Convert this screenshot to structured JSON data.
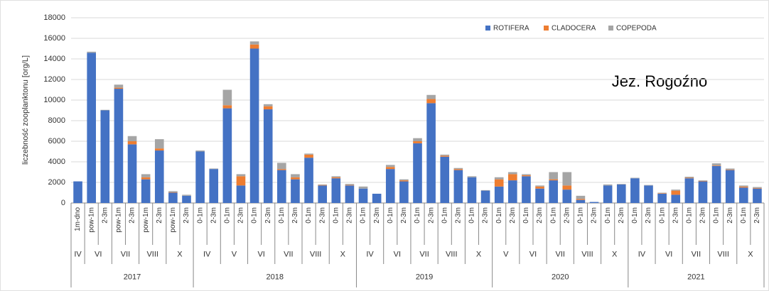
{
  "chart_data": {
    "type": "stacked-bar",
    "annotation": "Jez. Rogoźno",
    "y_label": "liczebność zooplanktonu [org/L]",
    "ylim": [
      0,
      18000
    ],
    "yticks": [
      0,
      2000,
      4000,
      6000,
      8000,
      10000,
      12000,
      14000,
      16000,
      18000
    ],
    "grid": true,
    "legend": "top-right",
    "years": [
      {
        "label": "2017",
        "months": [
          {
            "label": "IV",
            "categories": [
              "1m-dno"
            ]
          },
          {
            "label": "VI",
            "categories": [
              "pow-1m",
              "2-3m"
            ]
          },
          {
            "label": "VII",
            "categories": [
              "pow-1m",
              "2-3m"
            ]
          },
          {
            "label": "VIII",
            "categories": [
              "pow-1m",
              "2-3m"
            ]
          },
          {
            "label": "X",
            "categories": [
              "pow-1m",
              "2-3m"
            ]
          }
        ]
      },
      {
        "label": "2018",
        "months": [
          {
            "label": "IV",
            "categories": [
              "0-1m",
              "2-3m"
            ]
          },
          {
            "label": "V",
            "categories": [
              "0-1m",
              "2-3m"
            ]
          },
          {
            "label": "VI",
            "categories": [
              "0-1m",
              "2-3m"
            ]
          },
          {
            "label": "VII",
            "categories": [
              "0-1m",
              "2-3m"
            ]
          },
          {
            "label": "VIII",
            "categories": [
              "0-1m",
              "2-3m"
            ]
          },
          {
            "label": "X",
            "categories": [
              "0-1m",
              "2-3m"
            ]
          }
        ]
      },
      {
        "label": "2019",
        "months": [
          {
            "label": "IV",
            "categories": [
              "0-1m",
              "2-3m"
            ]
          },
          {
            "label": "VI",
            "categories": [
              "0-1m",
              "2-3m"
            ]
          },
          {
            "label": "VII",
            "categories": [
              "0-1m",
              "2-3m"
            ]
          },
          {
            "label": "VIII",
            "categories": [
              "0-1m",
              "2-3m"
            ]
          },
          {
            "label": "X",
            "categories": [
              "0-1m",
              "2-3m"
            ]
          }
        ]
      },
      {
        "label": "2020",
        "months": [
          {
            "label": "V",
            "categories": [
              "0-1m",
              "2-3m"
            ]
          },
          {
            "label": "VI",
            "categories": [
              "0-1m",
              "2-3m"
            ]
          },
          {
            "label": "VII",
            "categories": [
              "0-1m",
              "2-3m"
            ]
          },
          {
            "label": "VIII",
            "categories": [
              "0-1m",
              "2-3m"
            ]
          },
          {
            "label": "X",
            "categories": [
              "0-1m",
              "2-3m"
            ]
          }
        ]
      },
      {
        "label": "2021",
        "months": [
          {
            "label": "IV",
            "categories": [
              "0-1m",
              "2-3m"
            ]
          },
          {
            "label": "VI",
            "categories": [
              "0-1m",
              "2-3m"
            ]
          },
          {
            "label": "VII",
            "categories": [
              "0-1m",
              "2-3m"
            ]
          },
          {
            "label": "VIII",
            "categories": [
              "0-1m",
              "2-3m"
            ]
          },
          {
            "label": "X",
            "categories": [
              "0-1m",
              "2-3m"
            ]
          }
        ]
      }
    ],
    "series": [
      {
        "name": "ROTIFERA",
        "color": "#4472c4",
        "values": [
          2100,
          14600,
          9000,
          11100,
          5700,
          2300,
          5100,
          1000,
          700,
          5000,
          3300,
          9200,
          1700,
          15000,
          9100,
          3200,
          2300,
          4400,
          1700,
          2400,
          1700,
          1400,
          900,
          3300,
          2100,
          5800,
          9700,
          4500,
          3200,
          2500,
          1200,
          1600,
          2200,
          2600,
          1400,
          2200,
          1300,
          300,
          100,
          1700,
          1800,
          2400,
          1700,
          900,
          800,
          2400,
          2100,
          3600,
          3200,
          1500,
          1400
        ]
      },
      {
        "name": "CLADOCERA",
        "color": "#ed7d31",
        "values": [
          0,
          0,
          0,
          100,
          300,
          200,
          200,
          50,
          0,
          0,
          0,
          300,
          900,
          400,
          300,
          100,
          200,
          300,
          50,
          100,
          50,
          0,
          0,
          200,
          100,
          200,
          400,
          100,
          100,
          0,
          0,
          700,
          600,
          100,
          200,
          100,
          400,
          100,
          0,
          0,
          0,
          0,
          0,
          50,
          400,
          50,
          50,
          50,
          50,
          100,
          50
        ]
      },
      {
        "name": "COPEPODA",
        "color": "#a5a5a5",
        "values": [
          0,
          100,
          50,
          300,
          500,
          300,
          900,
          100,
          100,
          100,
          50,
          1500,
          200,
          300,
          200,
          600,
          300,
          100,
          50,
          100,
          100,
          200,
          0,
          200,
          100,
          300,
          400,
          100,
          100,
          100,
          50,
          200,
          200,
          100,
          100,
          700,
          1300,
          300,
          0,
          100,
          50,
          50,
          50,
          50,
          100,
          100,
          50,
          200,
          100,
          100,
          100
        ]
      }
    ]
  }
}
